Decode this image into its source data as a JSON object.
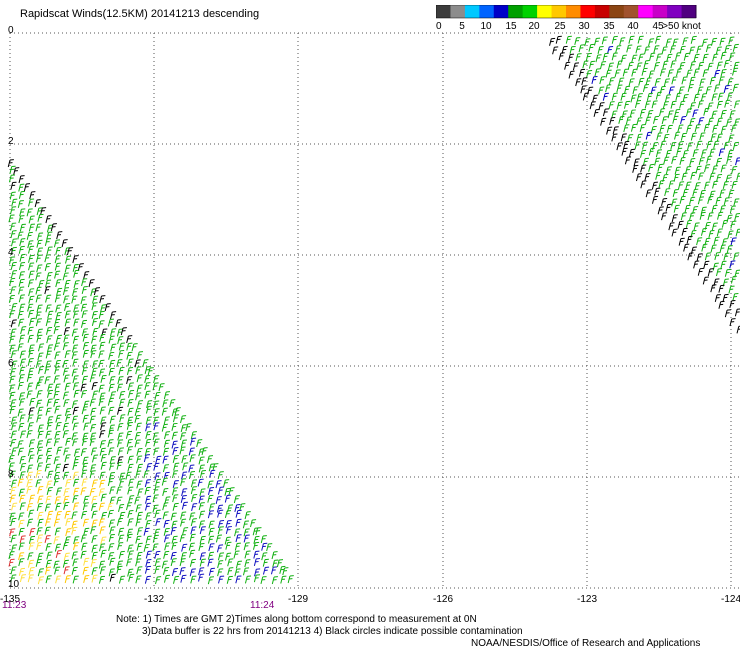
{
  "title": "Rapidscat Winds(12.5KM) 20141213 descending",
  "legend": {
    "labels": [
      "0",
      "5",
      "10",
      "15",
      "20",
      "25",
      "30",
      "35",
      "40",
      "45",
      ">50 knots"
    ],
    "colors": [
      "#3c3c3c",
      "#8c8c8c",
      "#00c8ff",
      "#0064ff",
      "#0000c8",
      "#00a000",
      "#00d200",
      "#ffff00",
      "#ffc800",
      "#ff8c00",
      "#ff0000",
      "#c80000",
      "#8b4513",
      "#a0522d",
      "#ff00ff",
      "#c800c8",
      "#8000c0",
      "#500080"
    ]
  },
  "chart_data": {
    "type": "scatter",
    "title": "Rapidscat Winds(12.5KM) 20141213 descending",
    "xlabel": "",
    "ylabel": "",
    "xlim": [
      -135,
      -124
    ],
    "ylim": [
      0,
      10
    ],
    "y_inverted": true,
    "grid": true,
    "x_ticks": [
      "-135",
      "-132",
      "-129",
      "-126",
      "-123",
      "-124"
    ],
    "y_ticks": [
      "0",
      "2",
      "4",
      "6",
      "8",
      "10"
    ],
    "time_labels": [
      "11:23",
      "11:24"
    ],
    "swaths": [
      {
        "name": "",
        "lat_range": [
          2.2,
          10
        ],
        "lon_edge_start": -134.9,
        "lon_edge_end": -129.2,
        "dominant_speed_knots": "15-20"
      },
      {
        "name": "",
        "lat_range": [
          0,
          5.3
        ],
        "lon_edge_start": -124.7,
        "lon_edge_end": -120.2,
        "dominant_speed_knots": "15-20"
      }
    ]
  },
  "notes": {
    "line1": "Note: 1) Times are GMT 2)Times along bottom correspond to measurement at 0N",
    "line2": "3)Data buffer is 22 hrs from 20141213 4) Black circles indicate possible contamination",
    "line3": "NOAA/NESDIS/Office of Research and Applications"
  }
}
